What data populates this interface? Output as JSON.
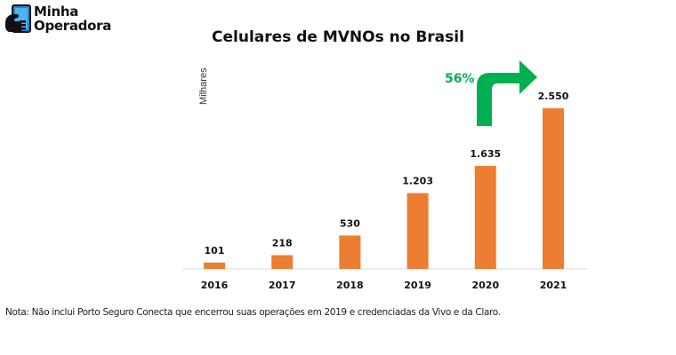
{
  "logo": {
    "line1": "Minha",
    "line2": "Operadora"
  },
  "note": "Nota: Não inclui Porto Seguro Conecta que encerrou suas operações em 2019 e credenciadas da Vivo e da Claro.",
  "colors": {
    "bar": "#ED7D31",
    "arrow": "#00B050",
    "growth_text": "#00B050",
    "logo_blue": "#1E88D8"
  },
  "chart_data": {
    "type": "bar",
    "title": "Celulares de MVNOs no Brasil",
    "xlabel": "",
    "ylabel": "Milhares",
    "categories": [
      "2016",
      "2017",
      "2018",
      "2019",
      "2020",
      "2021"
    ],
    "values": [
      101,
      218,
      530,
      1203,
      1635,
      2550
    ],
    "value_labels": [
      "101",
      "218",
      "530",
      "1.203",
      "1.635",
      "2.550"
    ],
    "ylim": [
      0,
      2550
    ],
    "grid": false,
    "annotations": [
      {
        "text": "56%",
        "type": "growth-arrow",
        "from": "2020",
        "to": "2021"
      }
    ]
  }
}
